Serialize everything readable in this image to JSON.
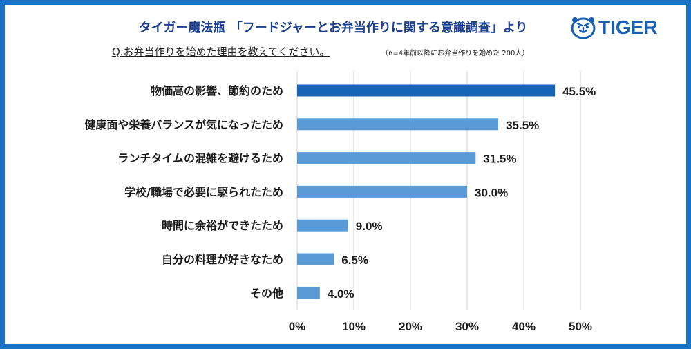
{
  "header": {
    "title": "タイガー魔法瓶 「フードジャーとお弁当作りに関する意識調査」より",
    "question": "Q.お弁当作りを始めた理由を教えてください。",
    "note": "（n=4年前以降にお弁当作りを始めた 200人）",
    "logo_text": "TIGER"
  },
  "colors": {
    "frame": "#1a73c4",
    "bar_highlight": "#1465b8",
    "bar": "#5b9bd5",
    "grid": "#d0d0d0",
    "title": "#1b3f8f",
    "logo": "#1a5fb4"
  },
  "chart_data": {
    "type": "bar",
    "orientation": "horizontal",
    "categories": [
      "物価高の影響、節約のため",
      "健康面や栄養バランスが気になったため",
      "ランチタイムの混雑を避けるため",
      "学校/職場で必要に駆られたため",
      "時間に余裕ができたため",
      "自分の料理が好きなため",
      "その他"
    ],
    "values": [
      45.5,
      35.5,
      31.5,
      30.0,
      9.0,
      6.5,
      4.0
    ],
    "value_labels": [
      "45.5%",
      "35.5%",
      "31.5%",
      "30.0%",
      "9.0%",
      "6.5%",
      "4.0%"
    ],
    "highlight_index": 0,
    "xlim": [
      0,
      50
    ],
    "xticks": [
      "0%",
      "10%",
      "20%",
      "30%",
      "40%",
      "50%"
    ],
    "grid": true
  }
}
